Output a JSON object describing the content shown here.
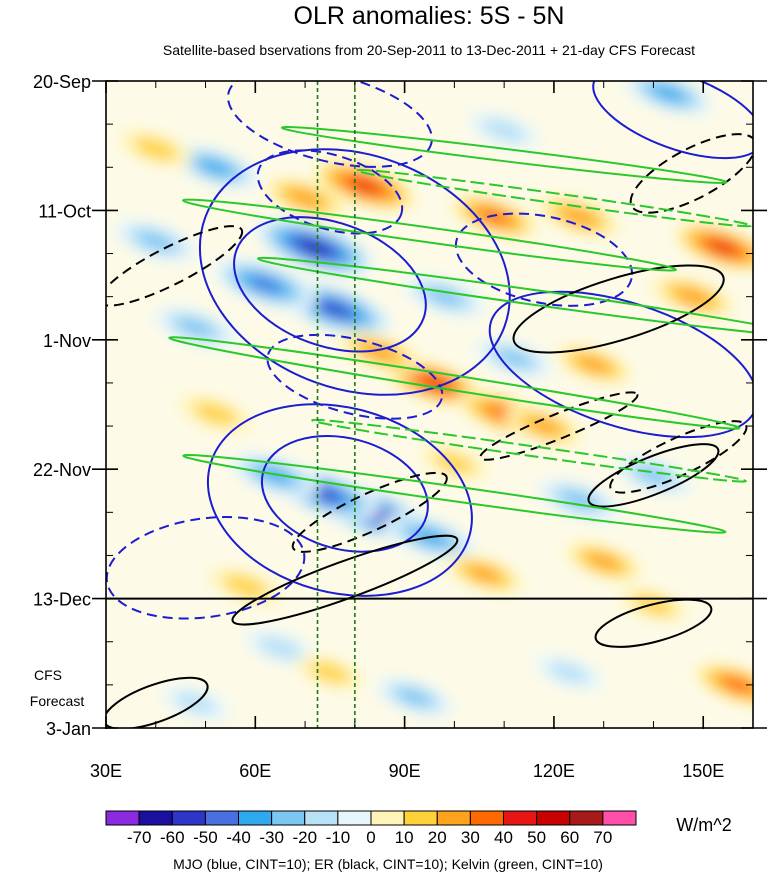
{
  "chart_data": {
    "type": "heatmap",
    "title": "OLR anomalies: 5S - 5N",
    "subtitle": "Satellite-based bservations from 20-Sep-2011 to 13-Dec-2011 + 21-day CFS Forecast",
    "x_axis": {
      "range": [
        30,
        160
      ],
      "ticks": [
        30,
        60,
        90,
        120,
        150
      ],
      "tick_labels": [
        "30E",
        "60E",
        "90E",
        "120E",
        "150E"
      ]
    },
    "y_axis": {
      "range": [
        "2011-09-20",
        "2012-01-03"
      ],
      "inverted": true,
      "ticks": [
        "2011-09-20",
        "2011-10-11",
        "2011-11-01",
        "2011-11-22",
        "2011-12-13",
        "2012-01-03"
      ],
      "tick_labels": [
        "20-Sep",
        "11-Oct",
        "1-Nov",
        "22-Nov",
        "13-Dec",
        "3-Jan"
      ]
    },
    "forecast_label": [
      "CFS",
      "Forecast"
    ],
    "forecast_boundary": "2011-12-13",
    "reference_longitudes": [
      72.5,
      80
    ],
    "colorbar": {
      "units": "W/m^2",
      "levels": [
        -70,
        -60,
        -50,
        -40,
        -30,
        -20,
        -10,
        0,
        10,
        20,
        30,
        40,
        50,
        60,
        70
      ],
      "labels": [
        "-70",
        "-60",
        "-50",
        "-40",
        "-30",
        "-20",
        "-10",
        "0",
        "10",
        "20",
        "30",
        "40",
        "50",
        "60",
        "70"
      ],
      "colors": [
        "#8a2be2",
        "#1a0f9e",
        "#2d36c8",
        "#4a6fe0",
        "#2fa9ee",
        "#7cc6f2",
        "#b8e0f6",
        "#e6f6fb",
        "#fff4b8",
        "#ffd23a",
        "#ffa31f",
        "#ff6a00",
        "#e81515",
        "#c70000",
        "#a81a1a",
        "#ff4fa8"
      ]
    },
    "overlays": [
      {
        "wave": "MJO",
        "color": "#1c1cd0"
      },
      {
        "wave": "ER",
        "color": "#000000"
      },
      {
        "wave": "Kelvin",
        "color": "#2bc82b"
      }
    ],
    "footer": "MJO (blue, CINT=10); ER (black, CINT=10); Kelvin (green, CINT=10)",
    "features": [
      {
        "lon": 72,
        "date": "2011-10-17",
        "value": -70
      },
      {
        "lon": 76,
        "date": "2011-10-27",
        "value": -65
      },
      {
        "lon": 62,
        "date": "2011-10-23",
        "value": -55
      },
      {
        "lon": 52,
        "date": "2011-10-04",
        "value": -40
      },
      {
        "lon": 40,
        "date": "2011-10-16",
        "value": -35
      },
      {
        "lon": 83,
        "date": "2011-11-29",
        "value": -70
      },
      {
        "lon": 74,
        "date": "2011-11-26",
        "value": -60
      },
      {
        "lon": 95,
        "date": "2011-12-03",
        "value": -45
      },
      {
        "lon": 64,
        "date": "2011-11-23",
        "value": -40
      },
      {
        "lon": 48,
        "date": "2011-10-30",
        "value": -35
      },
      {
        "lon": 112,
        "date": "2011-11-04",
        "value": -30
      },
      {
        "lon": 125,
        "date": "2011-11-27",
        "value": -35
      },
      {
        "lon": 140,
        "date": "2011-11-23",
        "value": -30
      },
      {
        "lon": 143,
        "date": "2011-09-22",
        "value": -40
      },
      {
        "lon": 110,
        "date": "2011-09-28",
        "value": -25
      },
      {
        "lon": 92,
        "date": "2011-12-29",
        "value": -30
      },
      {
        "lon": 65,
        "date": "2011-12-21",
        "value": -25
      },
      {
        "lon": 123,
        "date": "2011-12-25",
        "value": -20
      },
      {
        "lon": 48,
        "date": "2011-12-30",
        "value": -20
      },
      {
        "lon": 98,
        "date": "2011-10-25",
        "value": -35
      },
      {
        "lon": 82,
        "date": "2011-10-07",
        "value": 55
      },
      {
        "lon": 70,
        "date": "2011-10-09",
        "value": 35
      },
      {
        "lon": 108,
        "date": "2011-10-12",
        "value": 40
      },
      {
        "lon": 125,
        "date": "2011-10-12",
        "value": 35
      },
      {
        "lon": 154,
        "date": "2011-10-17",
        "value": 50
      },
      {
        "lon": 96,
        "date": "2011-11-08",
        "value": 50
      },
      {
        "lon": 110,
        "date": "2011-11-13",
        "value": 45
      },
      {
        "lon": 85,
        "date": "2011-11-03",
        "value": 35
      },
      {
        "lon": 128,
        "date": "2011-11-05",
        "value": 30
      },
      {
        "lon": 148,
        "date": "2011-10-25",
        "value": 35
      },
      {
        "lon": 40,
        "date": "2011-10-01",
        "value": 25
      },
      {
        "lon": 52,
        "date": "2011-11-13",
        "value": 25
      },
      {
        "lon": 100,
        "date": "2011-11-21",
        "value": 20
      },
      {
        "lon": 118,
        "date": "2011-11-15",
        "value": 30
      },
      {
        "lon": 130,
        "date": "2011-12-07",
        "value": 30
      },
      {
        "lon": 106,
        "date": "2011-12-09",
        "value": 30
      },
      {
        "lon": 58,
        "date": "2011-12-11",
        "value": 25
      },
      {
        "lon": 157,
        "date": "2011-12-27",
        "value": 40
      },
      {
        "lon": 75,
        "date": "2011-12-25",
        "value": 20
      },
      {
        "lon": 140,
        "date": "2011-12-14",
        "value": 20
      }
    ],
    "contours": [
      {
        "wave": "MJO",
        "sign": "neg",
        "polyline": false,
        "center": [
          75,
          "2011-10-23"
        ],
        "rx": 20,
        "ry": 10,
        "angle": 20
      },
      {
        "wave": "MJO",
        "sign": "neg",
        "polyline": false,
        "center": [
          80,
          "2011-10-21"
        ],
        "rx": 32,
        "ry": 19,
        "angle": 20
      },
      {
        "wave": "MJO",
        "sign": "neg",
        "polyline": false,
        "center": [
          78,
          "2011-11-26"
        ],
        "rx": 17,
        "ry": 9,
        "angle": 15
      },
      {
        "wave": "MJO",
        "sign": "neg",
        "polyline": false,
        "center": [
          77,
          "2011-11-27"
        ],
        "rx": 27,
        "ry": 15,
        "angle": 15
      },
      {
        "wave": "MJO",
        "sign": "neg",
        "polyline": false,
        "center": [
          134,
          "2011-11-05"
        ],
        "rx": 28,
        "ry": 10,
        "angle": 18
      },
      {
        "wave": "MJO",
        "sign": "neg",
        "polyline": false,
        "center": [
          145,
          "2011-09-25"
        ],
        "rx": 18,
        "ry": 6,
        "angle": 20
      },
      {
        "wave": "MJO",
        "sign": "pos",
        "polyline": false,
        "center": [
          75,
          "2011-09-26"
        ],
        "rx": 21,
        "ry": 7,
        "angle": 14
      },
      {
        "wave": "MJO",
        "sign": "pos",
        "polyline": false,
        "center": [
          75,
          "2011-10-08"
        ],
        "rx": 15,
        "ry": 6,
        "angle": 17
      },
      {
        "wave": "MJO",
        "sign": "pos",
        "polyline": false,
        "center": [
          80,
          "2011-11-07"
        ],
        "rx": 18,
        "ry": 6,
        "angle": 14
      },
      {
        "wave": "MJO",
        "sign": "pos",
        "polyline": false,
        "center": [
          118,
          "2011-10-19"
        ],
        "rx": 18,
        "ry": 7,
        "angle": 12
      },
      {
        "wave": "MJO",
        "sign": "pos",
        "polyline": false,
        "center": [
          50,
          "2011-12-08"
        ],
        "rx": 20,
        "ry": 8,
        "angle": -8
      },
      {
        "wave": "ER",
        "sign": "pos",
        "polyline": false,
        "center": [
          43,
          "2011-10-20"
        ],
        "rx": 16,
        "ry": 3,
        "angle": -27
      },
      {
        "wave": "ER",
        "sign": "pos",
        "polyline": false,
        "center": [
          121,
          "2011-11-15"
        ],
        "rx": 17,
        "ry": 2,
        "angle": -22
      },
      {
        "wave": "ER",
        "sign": "pos",
        "polyline": false,
        "center": [
          148,
          "2011-10-05"
        ],
        "rx": 14,
        "ry": 4,
        "angle": -28
      },
      {
        "wave": "ER",
        "sign": "pos",
        "polyline": false,
        "center": [
          83,
          "2011-11-29"
        ],
        "rx": 17,
        "ry": 3,
        "angle": -25
      },
      {
        "wave": "ER",
        "sign": "pos",
        "polyline": false,
        "center": [
          145,
          "2011-11-20"
        ],
        "rx": 15,
        "ry": 3,
        "angle": -25
      },
      {
        "wave": "ER",
        "sign": "neg",
        "polyline": false,
        "center": [
          78,
          "2011-12-10"
        ],
        "rx": 24,
        "ry": 3,
        "angle": -20
      },
      {
        "wave": "ER",
        "sign": "neg",
        "polyline": false,
        "center": [
          133,
          "2011-10-27"
        ],
        "rx": 22,
        "ry": 5,
        "angle": -17
      },
      {
        "wave": "ER",
        "sign": "neg",
        "polyline": false,
        "center": [
          40,
          "2011-12-30"
        ],
        "rx": 11,
        "ry": 3,
        "angle": -20
      },
      {
        "wave": "ER",
        "sign": "neg",
        "polyline": false,
        "center": [
          140,
          "2011-12-17"
        ],
        "rx": 12,
        "ry": 3,
        "angle": -15
      },
      {
        "wave": "ER",
        "sign": "neg",
        "polyline": false,
        "center": [
          140,
          "2011-11-23"
        ],
        "rx": 14,
        "ry": 3,
        "angle": -22
      },
      {
        "wave": "Kelvin",
        "sign": "pos",
        "polyline": false,
        "center": [
          95,
          "2011-10-15"
        ],
        "rx": 50,
        "ry": 1.2,
        "angle": 8
      },
      {
        "wave": "Kelvin",
        "sign": "pos",
        "polyline": false,
        "center": [
          110,
          "2011-10-02"
        ],
        "rx": 45,
        "ry": 1,
        "angle": 7
      },
      {
        "wave": "Kelvin",
        "sign": "pos",
        "polyline": false,
        "center": [
          115,
          "2011-10-25"
        ],
        "rx": 55,
        "ry": 1.2,
        "angle": 8
      },
      {
        "wave": "Kelvin",
        "sign": "pos",
        "polyline": false,
        "center": [
          100,
          "2011-11-08"
        ],
        "rx": 58,
        "ry": 1.2,
        "angle": 9
      },
      {
        "wave": "Kelvin",
        "sign": "pos",
        "polyline": false,
        "center": [
          100,
          "2011-11-26"
        ],
        "rx": 55,
        "ry": 1.2,
        "angle": 8
      },
      {
        "wave": "Kelvin",
        "sign": "neg",
        "polyline": false,
        "center": [
          120,
          "2011-10-09"
        ],
        "rx": 40,
        "ry": 0.8,
        "angle": 8
      },
      {
        "wave": "Kelvin",
        "sign": "neg",
        "polyline": false,
        "center": [
          115,
          "2011-11-19"
        ],
        "rx": 44,
        "ry": 0.8,
        "angle": 8
      }
    ]
  }
}
